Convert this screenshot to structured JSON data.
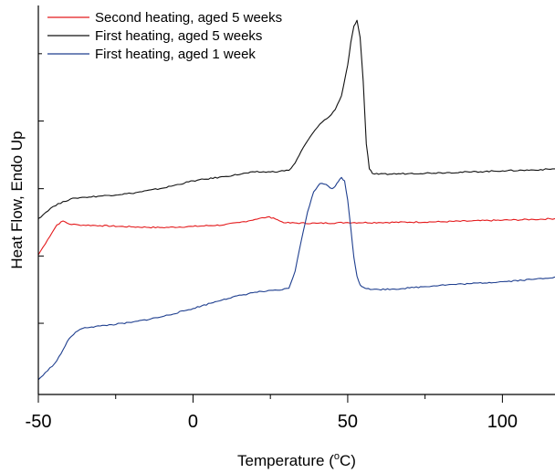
{
  "chart_data": {
    "type": "line",
    "xlabel_prefix": "Temperature (",
    "xlabel_sup": "o",
    "xlabel_suffix": "C)",
    "ylabel": "Heat Flow, Endo Up",
    "xlim": [
      -50,
      117
    ],
    "ylim": [
      0,
      100
    ],
    "x_ticks": [
      -50,
      0,
      50,
      100
    ],
    "x_tick_labels": [
      "-50",
      "0",
      "50",
      "100"
    ],
    "y_ticks_unlabeled": [
      18.3,
      35.6,
      52.9,
      70.3,
      87.6
    ],
    "grid": false,
    "legend_position": "top-left",
    "series": [
      {
        "name": "Second heating, aged 5 weeks",
        "color": "#e41a1c",
        "x": [
          -50,
          -47,
          -44,
          -42,
          -40,
          -37,
          -30,
          -20,
          -10,
          0,
          10,
          15,
          20,
          24,
          26,
          28,
          30,
          40,
          50,
          60,
          70,
          80,
          90,
          100,
          110,
          117
        ],
        "y": [
          35.9,
          39.8,
          43.6,
          44.6,
          43.8,
          43.6,
          43.4,
          43.1,
          42.9,
          43.2,
          43.6,
          44.2,
          45.0,
          45.6,
          45.4,
          44.6,
          44.1,
          44.0,
          44.2,
          44.2,
          44.3,
          44.4,
          44.6,
          44.8,
          45.0,
          45.2
        ]
      },
      {
        "name": "First heating, aged 5 weeks",
        "color": "#111111",
        "x": [
          -50,
          -46,
          -42,
          -38,
          -35,
          -30,
          -20,
          -10,
          0,
          10,
          20,
          25,
          28,
          31,
          33,
          35,
          38,
          41,
          44,
          46,
          48,
          50,
          51,
          52,
          53,
          54,
          55,
          56,
          57,
          58,
          60,
          70,
          80,
          90,
          100,
          110,
          117
        ],
        "y": [
          45.2,
          47.9,
          49.6,
          50.5,
          50.7,
          51.0,
          51.7,
          53.0,
          54.9,
          56.0,
          57.2,
          57.2,
          57.4,
          57.6,
          59.5,
          62.6,
          66.4,
          69.5,
          71.4,
          73.3,
          76.8,
          84.7,
          90.5,
          94.7,
          96.2,
          91.8,
          80.5,
          64.4,
          58.0,
          56.8,
          56.6,
          56.8,
          57.0,
          57.2,
          57.5,
          57.7,
          58.0
        ]
      },
      {
        "name": "First heating, aged 1 week",
        "color": "#1f3f8f",
        "x": [
          -50,
          -47,
          -44,
          -42,
          -40,
          -38,
          -35,
          -30,
          -20,
          -10,
          0,
          10,
          20,
          28,
          31,
          33,
          35,
          37,
          39,
          41,
          43,
          45,
          46,
          47,
          48,
          49,
          50,
          51,
          52,
          53,
          54,
          55,
          56,
          58,
          60,
          65,
          70,
          80,
          90,
          100,
          110,
          117
        ],
        "y": [
          3.8,
          6.1,
          8.7,
          11.5,
          14.4,
          16.0,
          17.2,
          17.6,
          18.5,
          20.0,
          22.1,
          24.5,
          26.3,
          26.8,
          27.3,
          31.7,
          39.6,
          46.9,
          52.1,
          54.2,
          54.0,
          52.9,
          53.6,
          54.8,
          55.8,
          54.9,
          50.0,
          42.8,
          35.2,
          30.4,
          28.2,
          27.6,
          27.2,
          27.0,
          27.0,
          27.1,
          27.4,
          28.1,
          28.5,
          29.0,
          29.6,
          30.2
        ]
      }
    ]
  }
}
